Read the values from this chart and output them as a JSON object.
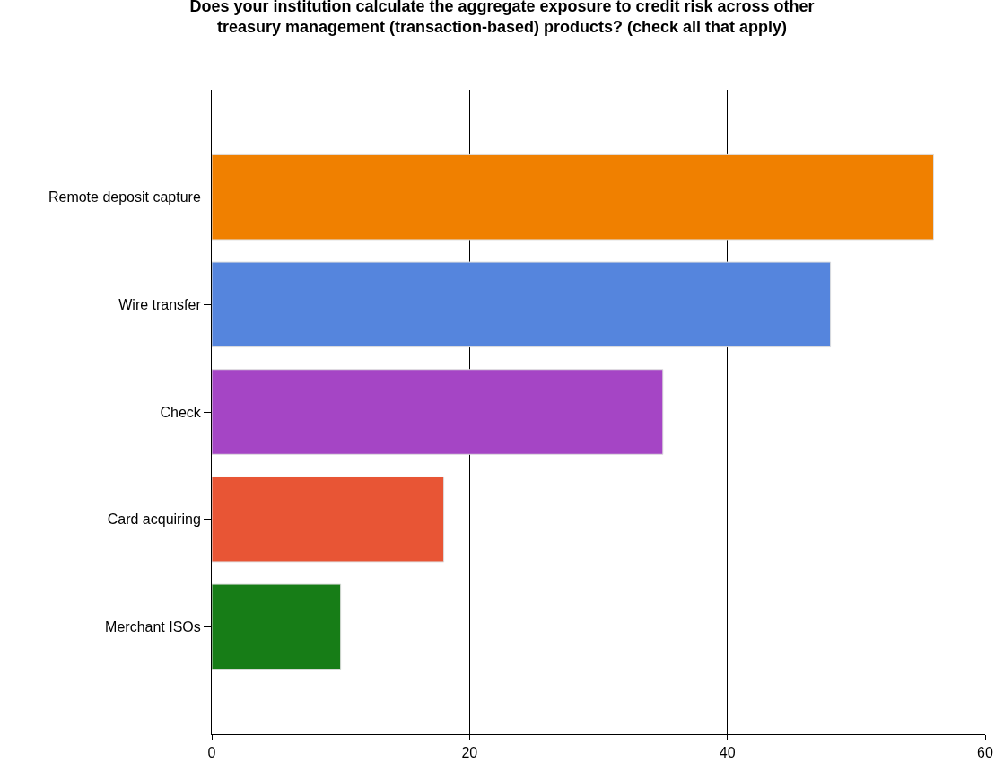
{
  "chart_data": {
    "type": "bar",
    "orientation": "horizontal",
    "title": "Does your institution calculate the aggregate exposure to credit risk across other treasury management (transaction-based) products? (check all that apply)",
    "categories": [
      "Remote deposit capture",
      "Wire transfer",
      "Check",
      "Card acquiring",
      "Merchant ISOs"
    ],
    "values": [
      56,
      48,
      35,
      18,
      10
    ],
    "colors": [
      "#f08000",
      "#5585dd",
      "#a545c5",
      "#e85535",
      "#177d17"
    ],
    "xlim": [
      0,
      60
    ],
    "xticks": [
      0,
      20,
      40,
      60
    ],
    "grid": "x",
    "legend": false
  }
}
